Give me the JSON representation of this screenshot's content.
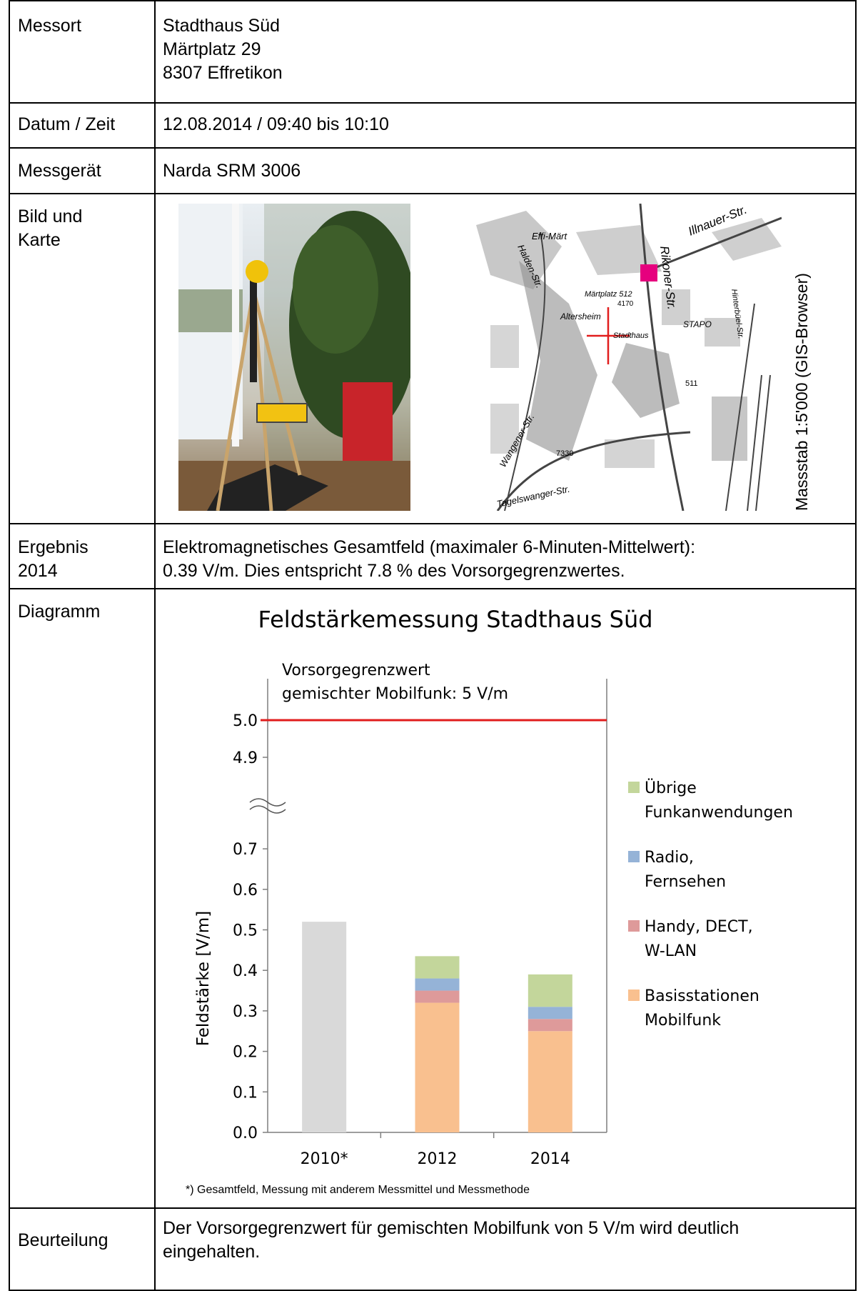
{
  "rows": {
    "messort": {
      "label": "Messort",
      "value": "Stadthaus Süd\nMärtplatz 29\n8307 Effretikon"
    },
    "datum": {
      "label": "Datum / Zeit",
      "value": "12.08.2014 / 09:40 bis 10:10"
    },
    "messgeraet": {
      "label": "Messgerät",
      "value": "Narda SRM 3006"
    },
    "bild": {
      "label": "Bild und\nKarte",
      "scale": "Massstab 1:5'000 (GIS-Browser)"
    },
    "ergebnis": {
      "label": "Ergebnis\n2014",
      "value": "Elektromagnetisches Gesamtfeld (maximaler 6-Minuten-Mittelwert):\n0.39 V/m. Dies entspricht 7.8 % des Vorsorgegrenzwertes."
    },
    "diagramm": {
      "label": "Diagramm",
      "footnote": "*) Gesamtfeld, Messung mit anderem Messmittel und Messmethode"
    },
    "beurteilung": {
      "label": "Beurteilung",
      "value": "Der Vorsorgegrenzwert für gemischten Mobilfunk von 5 V/m wird deutlich\neingehalten."
    }
  },
  "map_labels": [
    "Effi-Märt",
    "Illnauer-Str.",
    "Rikoner-Str.",
    "Halden-Str.",
    "Märtplatz 512",
    "Altersheim",
    "Stadthaus",
    "STAPO",
    "Hinterbüel-Str.",
    "Wangener-Str.",
    "Tagelswanger-Str.",
    "4170",
    "7330",
    "511"
  ],
  "chart_data": {
    "type": "bar",
    "title": "Feldstärkemessung Stadthaus Süd",
    "ylabel": "Feldstärke [V/m]",
    "categories": [
      "2010*",
      "2012",
      "2014"
    ],
    "yticks_lower": [
      "0.0",
      "0.1",
      "0.2",
      "0.3",
      "0.4",
      "0.5",
      "0.6",
      "0.7"
    ],
    "yticks_upper": [
      "4.9",
      "5.0"
    ],
    "axis_break": true,
    "limit": {
      "value": 5.0,
      "label_line1": "Vorsorgegrenzwert",
      "label_line2": "gemischter Mobilfunk: 5 V/m",
      "color": "#e11d1d"
    },
    "total_2010": {
      "value": 0.52,
      "color": "#d9d9d9"
    },
    "series": [
      {
        "name": "Basisstationen Mobilfunk",
        "legend": [
          "Basisstationen",
          "Mobilfunk"
        ],
        "color": "#f9c08f",
        "values": [
          null,
          0.32,
          0.25
        ]
      },
      {
        "name": "Handy, DECT, W-LAN",
        "legend": [
          "Handy, DECT,",
          "W-LAN"
        ],
        "color": "#de9a9a",
        "values": [
          null,
          0.03,
          0.03
        ]
      },
      {
        "name": "Radio, Fernsehen",
        "legend": [
          "Radio,",
          "Fernsehen"
        ],
        "color": "#95b3d7",
        "values": [
          null,
          0.03,
          0.03
        ]
      },
      {
        "name": "Übrige Funkanwendungen",
        "legend": [
          "Übrige",
          "Funkanwendungen"
        ],
        "color": "#c3d69b",
        "values": [
          null,
          0.055,
          0.08
        ]
      }
    ]
  }
}
